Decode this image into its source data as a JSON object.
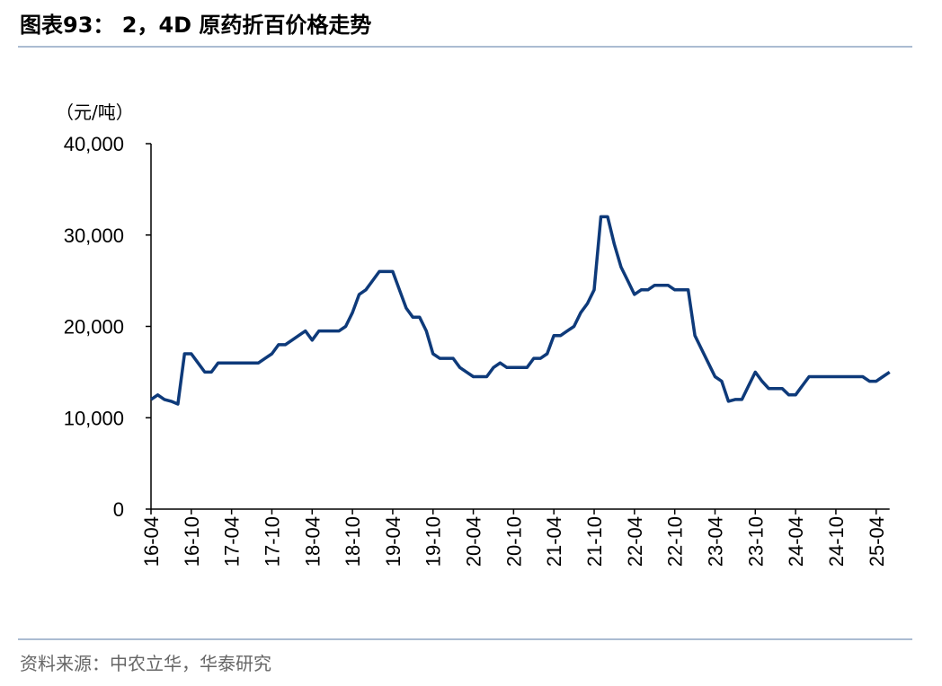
{
  "chart_data": {
    "type": "line",
    "title": "图表93： 2，4D 原药折百价格走势",
    "y_label": "（元/吨）",
    "source": "资料来源：中农立华，华泰研究",
    "categories": [
      "16-04",
      null,
      null,
      null,
      null,
      null,
      "16-10",
      null,
      null,
      null,
      null,
      null,
      "17-04",
      null,
      null,
      null,
      null,
      null,
      "17-10",
      null,
      null,
      null,
      null,
      null,
      "18-04",
      null,
      null,
      null,
      null,
      null,
      "18-10",
      null,
      null,
      null,
      null,
      null,
      "19-04",
      null,
      null,
      null,
      null,
      null,
      "19-10",
      null,
      null,
      null,
      null,
      null,
      "20-04",
      null,
      null,
      null,
      null,
      null,
      "20-10",
      null,
      null,
      null,
      null,
      null,
      "21-04",
      null,
      null,
      null,
      null,
      null,
      "21-10",
      null,
      null,
      null,
      null,
      null,
      "22-04",
      null,
      null,
      null,
      null,
      null,
      "22-10",
      null,
      null,
      null,
      null,
      null,
      "23-04",
      null,
      null,
      null,
      null,
      null,
      "23-10",
      null,
      null,
      null,
      null,
      null,
      "24-04",
      null,
      null,
      null,
      null,
      null,
      "24-10",
      null,
      null,
      null,
      null,
      null,
      "25-04",
      null,
      null
    ],
    "series": [
      {
        "name": "2，4D 原药折百价格",
        "color": "#0e3a7a",
        "values": [
          12000,
          12500,
          12000,
          11800,
          11500,
          17000,
          17000,
          16000,
          15000,
          15000,
          16000,
          16000,
          16000,
          16000,
          16000,
          16000,
          16000,
          16500,
          17000,
          18000,
          18000,
          18500,
          19000,
          19500,
          18500,
          19500,
          19500,
          19500,
          19500,
          20000,
          21500,
          23500,
          24000,
          25000,
          26000,
          26000,
          26000,
          24000,
          22000,
          21000,
          21000,
          19500,
          17000,
          16500,
          16500,
          16500,
          15500,
          15000,
          14500,
          14500,
          14500,
          15500,
          16000,
          15500,
          15500,
          15500,
          15500,
          16500,
          16500,
          17000,
          19000,
          19000,
          19500,
          20000,
          21500,
          22500,
          24000,
          32000,
          32000,
          29000,
          26500,
          25000,
          23500,
          24000,
          24000,
          24500,
          24500,
          24500,
          24000,
          24000,
          24000,
          19000,
          17500,
          16000,
          14500,
          14000,
          11800,
          12000,
          12000,
          13500,
          15000,
          14000,
          13200,
          13200,
          13200,
          12500,
          12500,
          13500,
          14500,
          14500,
          14500,
          14500,
          14500,
          14500,
          14500,
          14500,
          14500,
          14000,
          14000,
          14500,
          15000
        ]
      }
    ],
    "ylim": [
      0,
      40000
    ],
    "yticks": [
      0,
      {
        "value": 10000,
        "label": "10,000"
      },
      {
        "value": 20000,
        "label": "20,000"
      },
      {
        "value": 30000,
        "label": "30,000"
      },
      {
        "value": 40000,
        "label": "40,000"
      }
    ]
  }
}
